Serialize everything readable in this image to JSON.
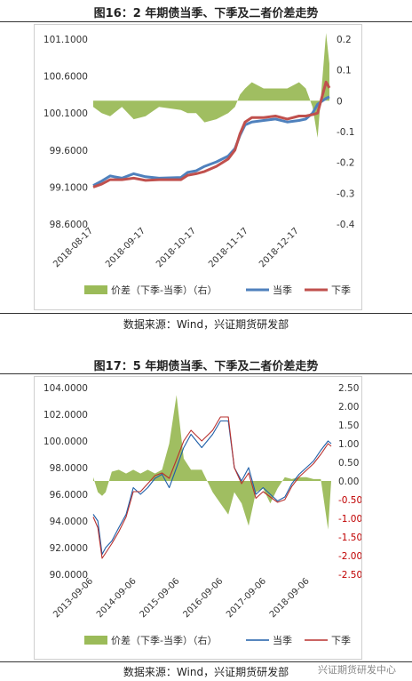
{
  "figures": [
    {
      "title": "图16：2 年期债当季、下季及二者价差走势",
      "source": "数据来源：Wind，兴证期货研发部"
    },
    {
      "title": "图17：5 年期债当季、下季及二者价差走势",
      "source": "数据来源：Wind，兴证期货研发部"
    }
  ],
  "watermark": "兴证期货研发中心",
  "chart_data": [
    {
      "type": "line",
      "x_start": "2018-08-17",
      "x_end": "2019-01-04",
      "x_ticks": [
        "2018-08-17",
        "2018-09-17",
        "2018-10-17",
        "2018-11-17",
        "2018-12-17"
      ],
      "y_left": {
        "ticks": [
          "101.1000",
          "100.6000",
          "100.1000",
          "99.6000",
          "99.1000",
          "98.6000"
        ],
        "range": [
          98.6,
          101.1
        ]
      },
      "y_right": {
        "ticks": [
          "0.2",
          "0.1",
          "0",
          "-0.1",
          "-0.2",
          "-0.3",
          "-0.4"
        ],
        "range": [
          -0.4,
          0.2
        ]
      },
      "legend": [
        "价差（下季-当季）（右）",
        "当季",
        "下季"
      ],
      "colors": {
        "spread": "#9bbb59",
        "current": "#4f81bd",
        "next": "#c0504d"
      },
      "series": [
        {
          "name": "当季",
          "axis": "left",
          "points": [
            [
              "2018-08-17",
              99.12
            ],
            [
              "2018-08-22",
              99.18
            ],
            [
              "2018-08-27",
              99.25
            ],
            [
              "2018-09-03",
              99.22
            ],
            [
              "2018-09-10",
              99.28
            ],
            [
              "2018-09-17",
              99.24
            ],
            [
              "2018-09-25",
              99.22
            ],
            [
              "2018-10-08",
              99.23
            ],
            [
              "2018-10-12",
              99.3
            ],
            [
              "2018-10-17",
              99.32
            ],
            [
              "2018-10-22",
              99.38
            ],
            [
              "2018-10-29",
              99.44
            ],
            [
              "2018-11-05",
              99.52
            ],
            [
              "2018-11-09",
              99.62
            ],
            [
              "2018-11-12",
              99.8
            ],
            [
              "2018-11-15",
              99.94
            ],
            [
              "2018-11-19",
              99.98
            ],
            [
              "2018-11-26",
              100.0
            ],
            [
              "2018-12-03",
              100.02
            ],
            [
              "2018-12-10",
              99.98
            ],
            [
              "2018-12-17",
              100.0
            ],
            [
              "2018-12-21",
              100.02
            ],
            [
              "2018-12-25",
              100.1
            ],
            [
              "2018-12-28",
              100.22
            ],
            [
              "2019-01-02",
              100.3
            ],
            [
              "2019-01-04",
              100.32
            ]
          ]
        },
        {
          "name": "下季",
          "axis": "left",
          "points": [
            [
              "2018-08-17",
              99.1
            ],
            [
              "2018-08-22",
              99.14
            ],
            [
              "2018-08-27",
              99.2
            ],
            [
              "2018-09-03",
              99.2
            ],
            [
              "2018-09-10",
              99.22
            ],
            [
              "2018-09-17",
              99.19
            ],
            [
              "2018-09-25",
              99.2
            ],
            [
              "2018-10-08",
              99.2
            ],
            [
              "2018-10-12",
              99.26
            ],
            [
              "2018-10-17",
              99.28
            ],
            [
              "2018-10-22",
              99.31
            ],
            [
              "2018-10-29",
              99.38
            ],
            [
              "2018-11-05",
              99.48
            ],
            [
              "2018-11-09",
              99.6
            ],
            [
              "2018-11-12",
              99.82
            ],
            [
              "2018-11-15",
              99.98
            ],
            [
              "2018-11-19",
              100.04
            ],
            [
              "2018-11-26",
              100.04
            ],
            [
              "2018-12-03",
              100.06
            ],
            [
              "2018-12-10",
              100.02
            ],
            [
              "2018-12-17",
              100.06
            ],
            [
              "2018-12-21",
              100.06
            ],
            [
              "2018-12-25",
              100.08
            ],
            [
              "2018-12-28",
              100.1
            ],
            [
              "2019-01-02",
              100.52
            ],
            [
              "2019-01-04",
              100.44
            ]
          ]
        },
        {
          "name": "价差（下季-当季）（右）",
          "axis": "right",
          "kind": "area",
          "points": [
            [
              "2018-08-17",
              -0.02
            ],
            [
              "2018-08-22",
              -0.04
            ],
            [
              "2018-08-27",
              -0.05
            ],
            [
              "2018-09-03",
              -0.02
            ],
            [
              "2018-09-10",
              -0.06
            ],
            [
              "2018-09-17",
              -0.05
            ],
            [
              "2018-09-25",
              -0.02
            ],
            [
              "2018-10-08",
              -0.03
            ],
            [
              "2018-10-12",
              -0.04
            ],
            [
              "2018-10-17",
              -0.04
            ],
            [
              "2018-10-22",
              -0.07
            ],
            [
              "2018-10-29",
              -0.06
            ],
            [
              "2018-11-05",
              -0.04
            ],
            [
              "2018-11-09",
              -0.02
            ],
            [
              "2018-11-12",
              0.02
            ],
            [
              "2018-11-15",
              0.04
            ],
            [
              "2018-11-19",
              0.06
            ],
            [
              "2018-11-26",
              0.04
            ],
            [
              "2018-12-03",
              0.04
            ],
            [
              "2018-12-10",
              0.04
            ],
            [
              "2018-12-17",
              0.06
            ],
            [
              "2018-12-21",
              0.04
            ],
            [
              "2018-12-25",
              -0.02
            ],
            [
              "2018-12-28",
              -0.12
            ],
            [
              "2019-01-02",
              0.22
            ],
            [
              "2019-01-04",
              0.12
            ]
          ]
        }
      ]
    },
    {
      "type": "line",
      "x_start": "2013-09-06",
      "x_end": "2019-03-08",
      "x_ticks": [
        "2013-09-06",
        "2014-09-06",
        "2015-09-06",
        "2016-09-06",
        "2017-09-06",
        "2018-09-06"
      ],
      "y_left": {
        "ticks": [
          "104.0000",
          "102.0000",
          "100.0000",
          "98.0000",
          "96.0000",
          "94.0000",
          "92.0000",
          "90.0000"
        ],
        "range": [
          90,
          104
        ]
      },
      "y_right": {
        "ticks": [
          "2.50",
          "2.00",
          "1.50",
          "1.00",
          "0.50",
          "0.00",
          "-0.50",
          "-1.00",
          "-1.50",
          "-2.00",
          "-2.50"
        ],
        "range": [
          -2.5,
          2.5
        ]
      },
      "legend": [
        "价差（下季-当季）（右）",
        "当季",
        "下季"
      ],
      "colors": {
        "spread": "#9bbb59",
        "current": "#1f5fa8",
        "next": "#b8312f"
      },
      "series": [
        {
          "name": "当季",
          "axis": "left",
          "points": [
            [
              "2013-09-06",
              94.5
            ],
            [
              "2013-10-15",
              94.0
            ],
            [
              "2013-11-20",
              91.5
            ],
            [
              "2013-12-20",
              92.0
            ],
            [
              "2014-02-10",
              92.5
            ],
            [
              "2014-04-10",
              93.5
            ],
            [
              "2014-06-10",
              94.5
            ],
            [
              "2014-08-10",
              96.5
            ],
            [
              "2014-10-10",
              96.0
            ],
            [
              "2014-12-10",
              96.5
            ],
            [
              "2015-02-10",
              97.2
            ],
            [
              "2015-04-10",
              97.5
            ],
            [
              "2015-06-10",
              96.5
            ],
            [
              "2015-08-10",
              98.0
            ],
            [
              "2015-10-10",
              99.5
            ],
            [
              "2015-12-10",
              100.5
            ],
            [
              "2016-03-10",
              99.5
            ],
            [
              "2016-06-10",
              100.5
            ],
            [
              "2016-08-15",
              101.5
            ],
            [
              "2016-10-20",
              101.5
            ],
            [
              "2016-12-10",
              98.0
            ],
            [
              "2017-02-10",
              97.0
            ],
            [
              "2017-04-10",
              98.0
            ],
            [
              "2017-06-10",
              96.0
            ],
            [
              "2017-08-10",
              96.5
            ],
            [
              "2017-10-10",
              96.0
            ],
            [
              "2017-12-10",
              95.5
            ],
            [
              "2018-02-10",
              95.8
            ],
            [
              "2018-04-10",
              96.8
            ],
            [
              "2018-06-10",
              97.5
            ],
            [
              "2018-08-10",
              98.0
            ],
            [
              "2018-10-10",
              98.5
            ],
            [
              "2018-12-10",
              99.3
            ],
            [
              "2019-02-10",
              100.0
            ],
            [
              "2019-03-08",
              99.8
            ]
          ]
        },
        {
          "name": "下季",
          "axis": "left",
          "points": [
            [
              "2013-09-06",
              94.3
            ],
            [
              "2013-10-15",
              93.5
            ],
            [
              "2013-11-20",
              91.2
            ],
            [
              "2013-12-20",
              91.6
            ],
            [
              "2014-02-10",
              92.3
            ],
            [
              "2014-04-10",
              93.2
            ],
            [
              "2014-06-10",
              94.3
            ],
            [
              "2014-08-10",
              96.2
            ],
            [
              "2014-10-10",
              96.2
            ],
            [
              "2014-12-10",
              96.8
            ],
            [
              "2015-02-10",
              97.4
            ],
            [
              "2015-04-10",
              97.6
            ],
            [
              "2015-06-10",
              97.2
            ],
            [
              "2015-08-10",
              98.6
            ],
            [
              "2015-10-10",
              100.0
            ],
            [
              "2015-12-10",
              100.8
            ],
            [
              "2016-03-10",
              100.0
            ],
            [
              "2016-06-10",
              100.8
            ],
            [
              "2016-08-15",
              101.8
            ],
            [
              "2016-10-20",
              101.8
            ],
            [
              "2016-12-10",
              98.0
            ],
            [
              "2017-02-10",
              96.8
            ],
            [
              "2017-04-10",
              97.6
            ],
            [
              "2017-06-10",
              95.7
            ],
            [
              "2017-08-10",
              96.2
            ],
            [
              "2017-10-10",
              95.8
            ],
            [
              "2017-12-10",
              95.4
            ],
            [
              "2018-02-10",
              95.6
            ],
            [
              "2018-04-10",
              96.6
            ],
            [
              "2018-06-10",
              97.3
            ],
            [
              "2018-08-10",
              97.8
            ],
            [
              "2018-10-10",
              98.3
            ],
            [
              "2018-12-10",
              99.0
            ],
            [
              "2019-02-10",
              99.8
            ],
            [
              "2019-03-08",
              99.6
            ]
          ]
        },
        {
          "name": "价差（下季-当季）（右）",
          "axis": "right",
          "kind": "area",
          "points": [
            [
              "2013-09-06",
              0.1
            ],
            [
              "2013-10-15",
              -0.3
            ],
            [
              "2013-11-20",
              -0.4
            ],
            [
              "2013-12-20",
              -0.3
            ],
            [
              "2014-02-10",
              0.25
            ],
            [
              "2014-04-10",
              0.3
            ],
            [
              "2014-06-10",
              0.2
            ],
            [
              "2014-08-10",
              0.3
            ],
            [
              "2014-10-10",
              0.2
            ],
            [
              "2014-12-10",
              0.3
            ],
            [
              "2015-02-10",
              0.2
            ],
            [
              "2015-04-10",
              0.3
            ],
            [
              "2015-06-10",
              1.0
            ],
            [
              "2015-08-10",
              2.3
            ],
            [
              "2015-10-10",
              0.6
            ],
            [
              "2015-12-10",
              0.3
            ],
            [
              "2016-03-10",
              0.3
            ],
            [
              "2016-06-10",
              -0.3
            ],
            [
              "2016-08-15",
              -0.6
            ],
            [
              "2016-10-20",
              -0.9
            ],
            [
              "2016-12-10",
              -0.3
            ],
            [
              "2017-02-10",
              -0.6
            ],
            [
              "2017-04-10",
              -1.2
            ],
            [
              "2017-06-10",
              -0.3
            ],
            [
              "2017-08-10",
              -0.2
            ],
            [
              "2017-10-10",
              -0.6
            ],
            [
              "2017-12-10",
              -0.2
            ],
            [
              "2018-02-10",
              0.1
            ],
            [
              "2018-04-10",
              0.05
            ],
            [
              "2018-06-10",
              0.1
            ],
            [
              "2018-08-10",
              0.1
            ],
            [
              "2018-10-10",
              0.05
            ],
            [
              "2018-12-10",
              0.05
            ],
            [
              "2019-02-10",
              -1.3
            ],
            [
              "2019-03-08",
              0.0
            ]
          ]
        }
      ]
    }
  ]
}
